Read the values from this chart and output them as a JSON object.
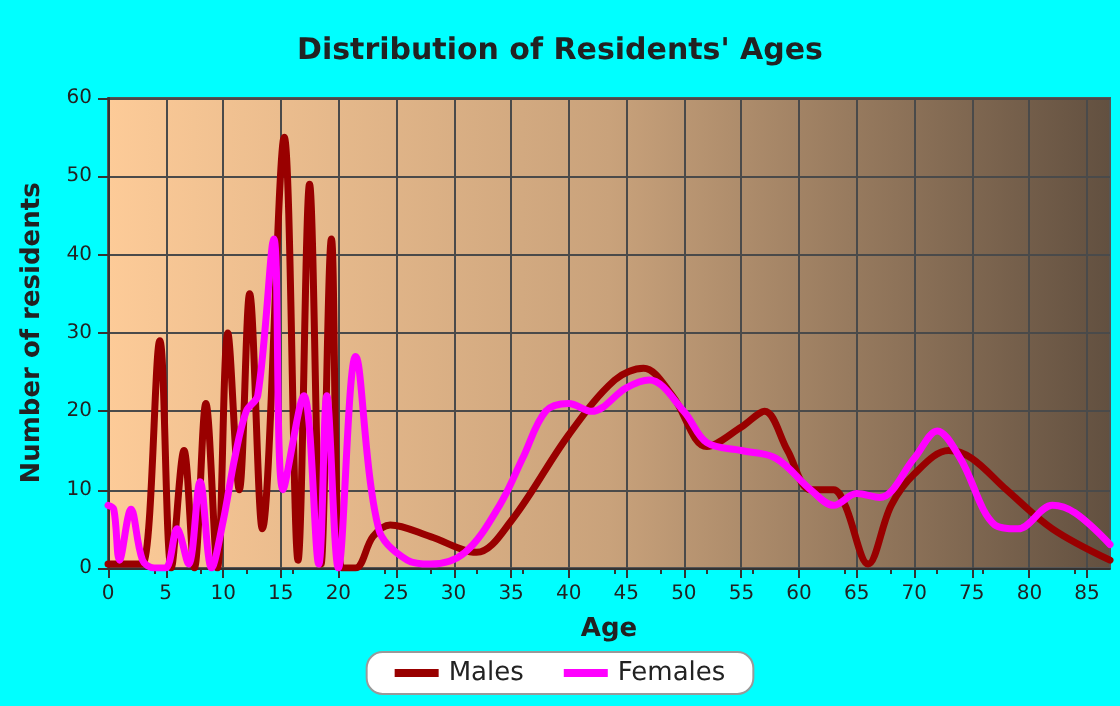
{
  "chart_data": {
    "type": "line",
    "title": "Distribution of Residents' Ages",
    "xlabel": "Age",
    "ylabel": "Number of residents",
    "xlim": [
      0,
      87
    ],
    "xticks": [
      0,
      5,
      10,
      15,
      20,
      25,
      30,
      35,
      40,
      45,
      50,
      55,
      60,
      65,
      70,
      75,
      80,
      85
    ],
    "ylim": [
      0,
      60
    ],
    "yticks": [
      0,
      10,
      20,
      30,
      40,
      50,
      60
    ],
    "grid": true,
    "legend": "bottom",
    "marker": "none",
    "line_style": "solid",
    "series": [
      {
        "name": "Males",
        "color": "#990000",
        "x": [
          0,
          1,
          2,
          3,
          4.5,
          5.5,
          6.6,
          7.5,
          8.5,
          9.5,
          10.4,
          11.4,
          12.3,
          13.4,
          15.3,
          16.5,
          17.5,
          18.5,
          19.4,
          20.3,
          21.5,
          23,
          24.5,
          28,
          32,
          35,
          40,
          44,
          46.5,
          49,
          52,
          55,
          57,
          59,
          61,
          63,
          64,
          66,
          68,
          70,
          73,
          75,
          78,
          82,
          87
        ],
        "values": [
          0.5,
          0.5,
          0.5,
          0.5,
          29,
          0,
          15,
          0,
          21,
          0,
          30,
          10,
          35,
          5,
          55,
          1,
          49,
          0.5,
          42,
          0,
          0,
          4,
          5.5,
          4,
          2,
          6,
          17,
          24,
          25.5,
          22,
          15.5,
          18,
          20,
          15,
          10,
          10,
          8,
          0.5,
          8,
          12,
          15,
          14,
          10,
          5,
          1
        ]
      },
      {
        "name": "Females",
        "color": "#ff00ff",
        "x": [
          0,
          0.5,
          1,
          2,
          3,
          4,
          5,
          6,
          7,
          8,
          9,
          10,
          11,
          12,
          13,
          14.4,
          15.2,
          17,
          18.3,
          19,
          20,
          21.5,
          23.5,
          26,
          28,
          31,
          34,
          36,
          38,
          40,
          42,
          45,
          47,
          50,
          52,
          55,
          58,
          61,
          63,
          65,
          67,
          70,
          72,
          74,
          77,
          79,
          82,
          84,
          87
        ],
        "values": [
          8,
          7.5,
          1,
          7.5,
          1,
          0,
          0,
          5,
          0.5,
          11,
          0,
          6,
          14,
          20,
          22,
          42,
          10,
          22,
          0.5,
          22,
          0,
          27,
          5,
          1,
          0.5,
          2,
          8,
          14,
          20,
          21,
          20,
          23,
          24,
          20,
          16,
          15,
          14,
          10,
          8,
          9.5,
          9,
          14,
          17.5,
          14,
          5.5,
          5,
          8,
          7,
          3
        ]
      }
    ]
  }
}
